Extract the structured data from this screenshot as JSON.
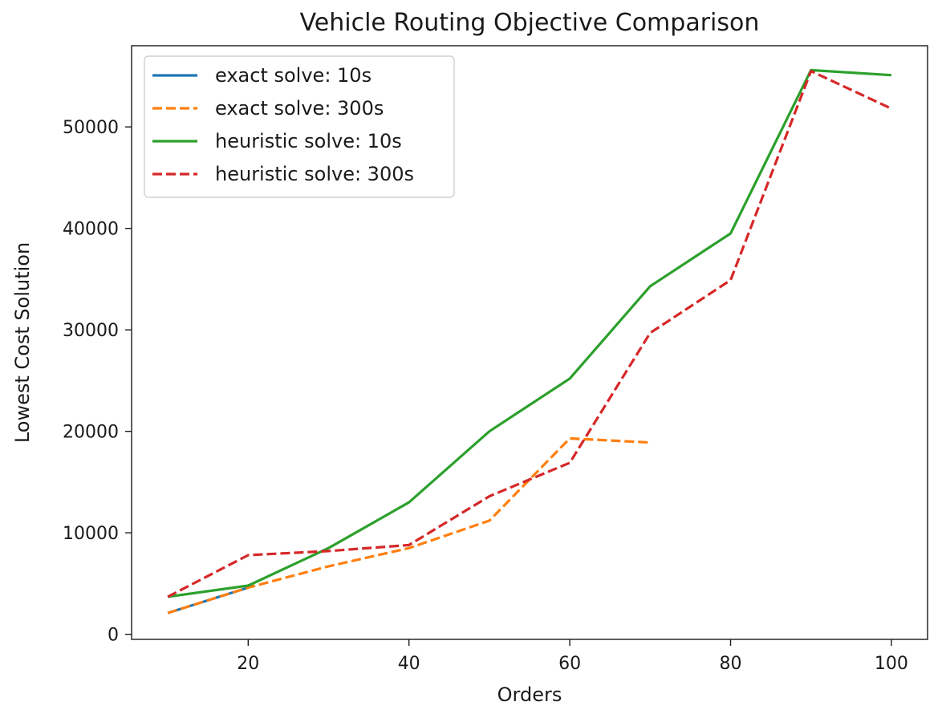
{
  "chart_data": {
    "type": "line",
    "title": "Vehicle Routing Objective Comparison",
    "xlabel": "Orders",
    "ylabel": "Lowest Cost Solution",
    "xlim": [
      5.5,
      104.5
    ],
    "ylim": [
      -500,
      58000
    ],
    "x_ticks": [
      20,
      40,
      60,
      80,
      100
    ],
    "y_ticks": [
      0,
      10000,
      20000,
      30000,
      40000,
      50000
    ],
    "x_tick_labels": [
      "20",
      "40",
      "60",
      "80",
      "100"
    ],
    "y_tick_labels": [
      "0",
      "10000",
      "20000",
      "30000",
      "40000",
      "50000"
    ],
    "grid": false,
    "legend_position": "top-left",
    "series": [
      {
        "name": "exact solve: 10s",
        "color": "#1f77b4",
        "dash": "solid",
        "x": [
          10,
          20
        ],
        "y": [
          2100,
          4600
        ]
      },
      {
        "name": "exact solve: 300s",
        "color": "#ff7f0e",
        "dash": "dashed",
        "x": [
          10,
          20,
          30,
          40,
          50,
          60,
          70
        ],
        "y": [
          2100,
          4600,
          6700,
          8500,
          11200,
          19300,
          18900
        ]
      },
      {
        "name": "heuristic solve: 10s",
        "color": "#2ca02c",
        "dash": "solid",
        "x": [
          10,
          20,
          30,
          40,
          50,
          60,
          70,
          80,
          90,
          100
        ],
        "y": [
          3700,
          4800,
          8500,
          13000,
          20000,
          25200,
          34300,
          39500,
          55600,
          55100
        ]
      },
      {
        "name": "heuristic solve: 300s",
        "color": "#d62728",
        "dash": "dashed",
        "x": [
          10,
          20,
          30,
          40,
          50,
          60,
          70,
          80,
          90,
          100
        ],
        "y": [
          3700,
          7800,
          8200,
          8800,
          13600,
          16900,
          29700,
          34900,
          55500,
          51800
        ]
      }
    ]
  }
}
